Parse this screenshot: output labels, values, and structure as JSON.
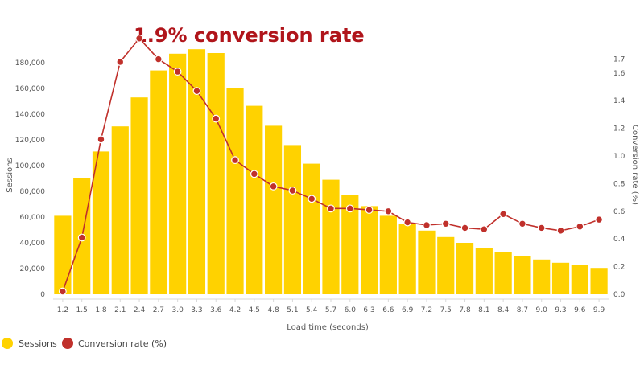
{
  "colors": {
    "sessions": "#FFD200",
    "conversion": "#C0302B",
    "title": "#B0151B",
    "axis": "#D9D9D9"
  },
  "chart_data": {
    "type": "bar",
    "title": "1.9% conversion rate",
    "xlabel": "Load time (seconds)",
    "ylabel": "Sessions",
    "y2label": "Conversion rate (%)",
    "categories": [
      "1.2",
      "1.5",
      "1.8",
      "2.1",
      "2.4",
      "2.7",
      "3.0",
      "3.3",
      "3.6",
      "4.2",
      "4.5",
      "4.8",
      "5.1",
      "5.4",
      "5.7",
      "6.0",
      "6.3",
      "6.6",
      "6.9",
      "7.2",
      "7.5",
      "7.8",
      "8.1",
      "8.4",
      "8.7",
      "9.0",
      "9.3",
      "9.6",
      "9.9"
    ],
    "yticks": [
      0,
      20000,
      40000,
      60000,
      80000,
      100000,
      120000,
      140000,
      160000,
      180000
    ],
    "ytick_labels": [
      "0",
      "20,000",
      "40,000",
      "60,000",
      "80,000",
      "100,000",
      "120,000",
      "140,000",
      "160,000",
      "180,000"
    ],
    "y2ticks": [
      0.0,
      0.2,
      0.4,
      0.6,
      0.8,
      1.0,
      1.2,
      1.4,
      1.6,
      1.7
    ],
    "y2tick_labels": [
      "0.0",
      "0.2",
      "0.4",
      "0.6",
      "0.8",
      "1.0",
      "1.2",
      "1.4",
      "1.6",
      "1.7"
    ],
    "ylim": [
      0,
      190000
    ],
    "series": [
      {
        "name": "Sessions",
        "kind": "bar",
        "axis": "left",
        "values": [
          61000,
          90500,
          111000,
          130500,
          153000,
          174000,
          187000,
          190500,
          187500,
          160000,
          146500,
          131000,
          116000,
          101500,
          89000,
          77500,
          68500,
          61000,
          54500,
          49500,
          44500,
          40000,
          36000,
          32500,
          29500,
          27000,
          24500,
          22500,
          20500
        ]
      },
      {
        "name": "Conversion rate (%)",
        "kind": "line",
        "axis": "right",
        "values": [
          0.02,
          0.41,
          1.12,
          1.68,
          1.85,
          1.7,
          1.61,
          1.47,
          1.27,
          0.97,
          0.87,
          0.78,
          0.75,
          0.69,
          0.62,
          0.62,
          0.61,
          0.6,
          0.52,
          0.5,
          0.51,
          0.48,
          0.47,
          0.58,
          0.51,
          0.48,
          0.46,
          0.49,
          0.54
        ]
      }
    ],
    "legend": {
      "placement": "bottom-left",
      "items": [
        "Sessions",
        "Conversion rate (%)"
      ]
    },
    "grid": false
  }
}
